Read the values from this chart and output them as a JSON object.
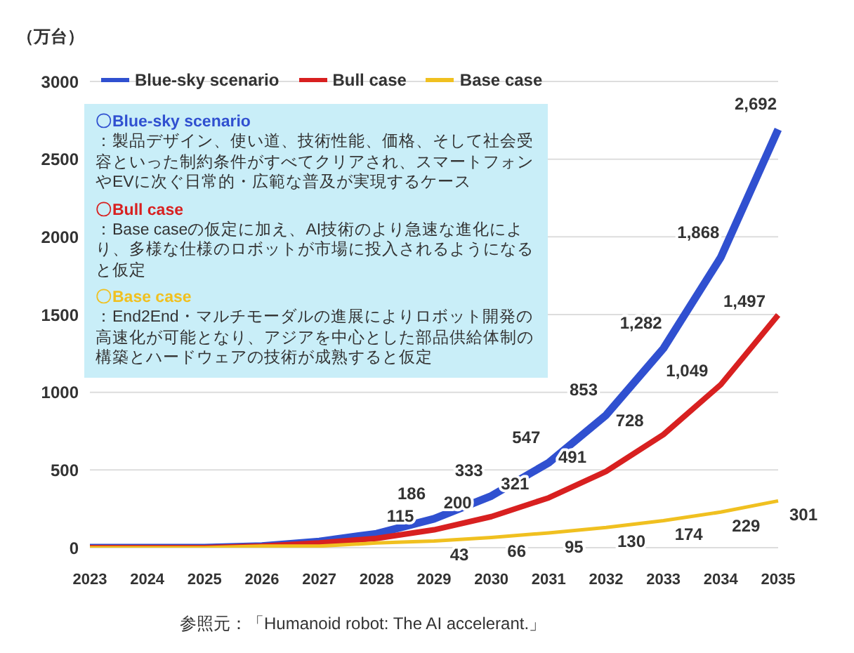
{
  "chart_data": {
    "type": "line",
    "ylabel": "（万台）",
    "categories": [
      "2023",
      "2024",
      "2025",
      "2026",
      "2027",
      "2028",
      "2029",
      "2030",
      "2031",
      "2032",
      "2033",
      "2034",
      "2035"
    ],
    "series": [
      {
        "name": "Blue-sky scenario",
        "color": "#3050d0",
        "values": [
          0,
          0,
          0,
          10,
          40,
          90,
          186,
          333,
          547,
          853,
          1282,
          1868,
          2692
        ],
        "value_labels": [
          null,
          null,
          null,
          null,
          null,
          null,
          "186",
          "333",
          "547",
          "853",
          "1,282",
          "1,868",
          "2,692"
        ]
      },
      {
        "name": "Bull case",
        "color": "#d82020",
        "values": [
          0,
          0,
          0,
          10,
          30,
          60,
          115,
          200,
          321,
          491,
          728,
          1049,
          1497
        ],
        "value_labels": [
          null,
          null,
          null,
          null,
          null,
          null,
          "115",
          "200",
          "321",
          "491",
          "728",
          "1,049",
          "1,497"
        ]
      },
      {
        "name": "Base case",
        "color": "#f0c020",
        "values": [
          0,
          0,
          0,
          10,
          10,
          30,
          43,
          66,
          95,
          130,
          174,
          229,
          301
        ],
        "value_labels": [
          null,
          null,
          null,
          null,
          null,
          null,
          "43",
          "66",
          "95",
          "130",
          "174",
          "229",
          "301"
        ]
      }
    ],
    "ylim": [
      0,
      3000
    ],
    "yticks": [
      0,
      500,
      1000,
      1500,
      2000,
      2500,
      3000
    ],
    "grid": "y",
    "legend": "top left",
    "marker": "none",
    "line_style": "solid",
    "annotations": [
      "〇Blue-sky scenario",
      "：製品デザイン、使い道、技術性能、価格、そして社会受容といった制約条件がすべてクリアされ、スマートフォンやEVに次ぐ日常的・広範な普及が実現するケース",
      "〇Bull case",
      "：Base caseの仮定に加え、AI技術のより急速な進化により、多様な仕様のロボットが市場に投入されるようになると仮定",
      "〇Base case",
      "：End2End・マルチモーダルの進展によりロボット開発の高速化が可能となり、アジアを中心とした部品供給体制の構築とハードウェアの技術が成熟すると仮定",
      "参照元：「Humanoid robot: The AI accelerant.」"
    ]
  }
}
